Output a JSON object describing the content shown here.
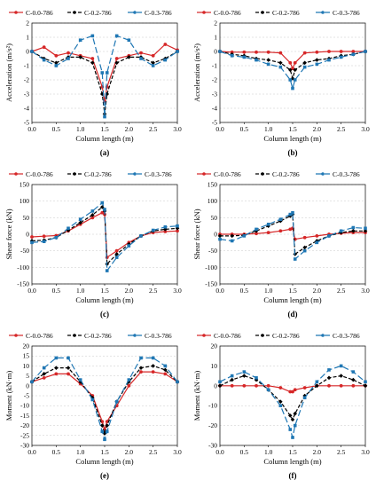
{
  "legend_labels": [
    "C-0.0-786",
    "C-0.2-786",
    "C-0.3-786"
  ],
  "series_colors": [
    "#d62728",
    "#000000",
    "#1f77b4"
  ],
  "chart_data": [
    {
      "type": "line",
      "panel_label": "(a)",
      "xlabel": "Column length (m)",
      "ylabel": "Acceleration (m/s²)",
      "xlim": [
        0,
        3
      ],
      "ylim": [
        -5,
        2
      ],
      "xticks": [
        0,
        0.5,
        1,
        1.5,
        2,
        2.5,
        3
      ],
      "yticks": [
        -5,
        -4,
        -3,
        -2,
        -1,
        0,
        1,
        2
      ],
      "grid": true,
      "legend": "top",
      "series": [
        {
          "name": "C-0.0-786",
          "x": [
            0,
            0.25,
            0.5,
            0.75,
            1.0,
            1.25,
            1.45,
            1.5,
            1.55,
            1.75,
            2.0,
            2.25,
            2.5,
            2.75,
            3.0
          ],
          "y": [
            0,
            0.3,
            -0.3,
            -0.1,
            -0.3,
            -0.5,
            -2.5,
            -3.5,
            -2.5,
            -0.5,
            -0.3,
            -0.1,
            -0.3,
            0.5,
            0.1
          ]
        },
        {
          "name": "C-0.2-786",
          "x": [
            0,
            0.25,
            0.5,
            0.75,
            1.0,
            1.25,
            1.45,
            1.5,
            1.55,
            1.75,
            2.0,
            2.25,
            2.5,
            2.75,
            3.0
          ],
          "y": [
            0,
            -0.5,
            -0.8,
            -0.4,
            -0.4,
            -0.8,
            -3.0,
            -4.4,
            -3.0,
            -0.8,
            -0.4,
            -0.4,
            -0.8,
            -0.5,
            0
          ]
        },
        {
          "name": "C-0.3-786",
          "x": [
            0,
            0.25,
            0.5,
            0.75,
            1.0,
            1.25,
            1.45,
            1.5,
            1.55,
            1.75,
            2.0,
            2.25,
            2.5,
            2.75,
            3.0
          ],
          "y": [
            0,
            -0.6,
            -1.0,
            -0.5,
            0.8,
            1.1,
            -1.5,
            -4.6,
            -1.5,
            1.1,
            0.8,
            -0.5,
            -1.0,
            -0.6,
            0
          ]
        }
      ]
    },
    {
      "type": "line",
      "panel_label": "(b)",
      "xlabel": "Column length (m)",
      "ylabel": "Acceleration (m/s²)",
      "xlim": [
        0,
        3
      ],
      "ylim": [
        -5,
        2
      ],
      "xticks": [
        0,
        0.5,
        1,
        1.5,
        2,
        2.5,
        3
      ],
      "yticks": [
        -5,
        -4,
        -3,
        -2,
        -1,
        0,
        1,
        2
      ],
      "grid": true,
      "legend": "top",
      "series": [
        {
          "name": "C-0.0-786",
          "x": [
            0,
            0.25,
            0.5,
            0.75,
            1.0,
            1.25,
            1.45,
            1.5,
            1.55,
            1.75,
            2.0,
            2.25,
            2.5,
            2.75,
            3.0
          ],
          "y": [
            0,
            -0.05,
            -0.05,
            -0.05,
            -0.05,
            -0.1,
            -0.8,
            -1.2,
            -0.8,
            -0.1,
            -0.05,
            0,
            0,
            0,
            0
          ]
        },
        {
          "name": "C-0.2-786",
          "x": [
            0,
            0.25,
            0.5,
            0.75,
            1.0,
            1.25,
            1.45,
            1.5,
            1.55,
            1.75,
            2.0,
            2.25,
            2.5,
            2.75,
            3.0
          ],
          "y": [
            0,
            -0.2,
            -0.3,
            -0.5,
            -0.6,
            -0.8,
            -1.3,
            -1.9,
            -1.3,
            -0.8,
            -0.6,
            -0.5,
            -0.3,
            -0.2,
            0
          ]
        },
        {
          "name": "C-0.3-786",
          "x": [
            0,
            0.25,
            0.5,
            0.75,
            1.0,
            1.25,
            1.45,
            1.5,
            1.55,
            1.75,
            2.0,
            2.25,
            2.5,
            2.75,
            3.0
          ],
          "y": [
            0,
            -0.3,
            -0.4,
            -0.6,
            -0.9,
            -1.1,
            -2.0,
            -2.6,
            -2.0,
            -1.1,
            -0.9,
            -0.6,
            -0.4,
            -0.2,
            0
          ]
        }
      ]
    },
    {
      "type": "line",
      "panel_label": "(c)",
      "xlabel": "Column length (m)",
      "ylabel": "Shear force (kN)",
      "xlim": [
        0,
        3
      ],
      "ylim": [
        -150,
        150
      ],
      "xticks": [
        0,
        0.5,
        1,
        1.5,
        2,
        2.5,
        3
      ],
      "yticks": [
        -150,
        -100,
        -50,
        0,
        50,
        100,
        150
      ],
      "grid": true,
      "legend": "top",
      "series": [
        {
          "name": "C-0.0-786",
          "x": [
            0,
            0.25,
            0.5,
            0.75,
            1.0,
            1.25,
            1.45,
            1.5,
            1.55,
            1.75,
            2.0,
            2.25,
            2.5,
            2.75,
            3.0
          ],
          "y": [
            -8,
            -6,
            -4,
            10,
            30,
            50,
            65,
            60,
            -70,
            -50,
            -25,
            -5,
            5,
            8,
            10
          ]
        },
        {
          "name": "C-0.2-786",
          "x": [
            0,
            0.25,
            0.5,
            0.75,
            1.0,
            1.25,
            1.45,
            1.5,
            1.55,
            1.75,
            2.0,
            2.25,
            2.5,
            2.75,
            3.0
          ],
          "y": [
            -20,
            -18,
            -10,
            12,
            35,
            58,
            82,
            70,
            -90,
            -60,
            -30,
            -5,
            10,
            15,
            18
          ]
        },
        {
          "name": "C-0.3-786",
          "x": [
            0,
            0.25,
            0.5,
            0.75,
            1.0,
            1.25,
            1.45,
            1.5,
            1.55,
            1.75,
            2.0,
            2.25,
            2.5,
            2.75,
            3.0
          ],
          "y": [
            -25,
            -22,
            -10,
            18,
            45,
            70,
            95,
            75,
            -110,
            -70,
            -35,
            -5,
            12,
            22,
            25
          ]
        }
      ]
    },
    {
      "type": "line",
      "panel_label": "(d)",
      "xlabel": "Column length (m)",
      "ylabel": "Shear force (kN)",
      "xlim": [
        0,
        3
      ],
      "ylim": [
        -150,
        150
      ],
      "xticks": [
        0,
        0.5,
        1,
        1.5,
        2,
        2.5,
        3
      ],
      "yticks": [
        -150,
        -100,
        -50,
        0,
        50,
        100,
        150
      ],
      "grid": true,
      "legend": "top",
      "series": [
        {
          "name": "C-0.0-786",
          "x": [
            0,
            0.25,
            0.5,
            0.75,
            1.0,
            1.25,
            1.45,
            1.5,
            1.55,
            1.75,
            2.0,
            2.25,
            2.5,
            2.75,
            3.0
          ],
          "y": [
            0,
            0,
            0,
            2,
            5,
            10,
            15,
            18,
            -15,
            -10,
            -5,
            0,
            3,
            5,
            5
          ]
        },
        {
          "name": "C-0.2-786",
          "x": [
            0,
            0.25,
            0.5,
            0.75,
            1.0,
            1.25,
            1.45,
            1.5,
            1.55,
            1.75,
            2.0,
            2.25,
            2.5,
            2.75,
            3.0
          ],
          "y": [
            -5,
            -5,
            -3,
            10,
            25,
            40,
            55,
            60,
            -60,
            -40,
            -20,
            -5,
            5,
            10,
            10
          ]
        },
        {
          "name": "C-0.3-786",
          "x": [
            0,
            0.25,
            0.5,
            0.75,
            1.0,
            1.25,
            1.45,
            1.5,
            1.55,
            1.75,
            2.0,
            2.25,
            2.5,
            2.75,
            3.0
          ],
          "y": [
            -15,
            -20,
            -5,
            15,
            30,
            45,
            60,
            65,
            -75,
            -50,
            -25,
            -5,
            10,
            20,
            18
          ]
        }
      ]
    },
    {
      "type": "line",
      "panel_label": "(e)",
      "xlabel": "Column length (m)",
      "ylabel": "Moment (kN·m)",
      "xlim": [
        0,
        3
      ],
      "ylim": [
        -30,
        20
      ],
      "xticks": [
        0,
        0.5,
        1,
        1.5,
        2,
        2.5,
        3
      ],
      "yticks": [
        -30,
        -25,
        -20,
        -15,
        -10,
        -5,
        0,
        5,
        10,
        15,
        20
      ],
      "grid": true,
      "legend": "top",
      "series": [
        {
          "name": "C-0.0-786",
          "x": [
            0,
            0.25,
            0.5,
            0.75,
            1.0,
            1.25,
            1.45,
            1.5,
            1.55,
            1.75,
            2.0,
            2.25,
            2.5,
            2.75,
            3.0
          ],
          "y": [
            2,
            4,
            6,
            6,
            1,
            -5,
            -18,
            -22,
            -18,
            -10,
            0,
            7,
            7,
            6,
            2
          ]
        },
        {
          "name": "C-0.2-786",
          "x": [
            0,
            0.25,
            0.5,
            0.75,
            1.0,
            1.25,
            1.45,
            1.5,
            1.55,
            1.75,
            2.0,
            2.25,
            2.5,
            2.75,
            3.0
          ],
          "y": [
            2,
            6,
            9,
            9,
            2,
            -6,
            -20,
            -24,
            -20,
            -8,
            2,
            9,
            10,
            8,
            2
          ]
        },
        {
          "name": "C-0.3-786",
          "x": [
            0,
            0.25,
            0.5,
            0.75,
            1.0,
            1.25,
            1.45,
            1.5,
            1.55,
            1.75,
            2.0,
            2.25,
            2.5,
            2.75,
            3.0
          ],
          "y": [
            2,
            9,
            14,
            14,
            3,
            -7,
            -23,
            -27,
            -23,
            -8,
            3,
            14,
            14,
            10,
            2
          ]
        }
      ]
    },
    {
      "type": "line",
      "panel_label": "(f)",
      "xlabel": "Column length (m)",
      "ylabel": "Moment (kN·m)",
      "xlim": [
        0,
        3
      ],
      "ylim": [
        -30,
        20
      ],
      "xticks": [
        0,
        0.5,
        1,
        1.5,
        2,
        2.5,
        3
      ],
      "yticks": [
        -30,
        -20,
        -10,
        0,
        10,
        20
      ],
      "grid": true,
      "legend": "top",
      "series": [
        {
          "name": "C-0.0-786",
          "x": [
            0,
            0.25,
            0.5,
            0.75,
            1.0,
            1.25,
            1.45,
            1.5,
            1.55,
            1.75,
            2.0,
            2.25,
            2.5,
            2.75,
            3.0
          ],
          "y": [
            0,
            0,
            0,
            0,
            0,
            -1,
            -3,
            -3,
            -2,
            -1,
            0,
            0,
            0,
            0,
            0
          ]
        },
        {
          "name": "C-0.2-786",
          "x": [
            0,
            0.25,
            0.5,
            0.75,
            1.0,
            1.25,
            1.45,
            1.5,
            1.55,
            1.75,
            2.0,
            2.25,
            2.5,
            2.75,
            3.0
          ],
          "y": [
            0,
            3,
            5,
            3,
            -2,
            -8,
            -15,
            -17,
            -14,
            -5,
            0,
            4,
            5,
            3,
            0
          ]
        },
        {
          "name": "C-0.3-786",
          "x": [
            0,
            0.25,
            0.5,
            0.75,
            1.0,
            1.25,
            1.45,
            1.5,
            1.55,
            1.75,
            2.0,
            2.25,
            2.5,
            2.75,
            3.0
          ],
          "y": [
            2,
            5,
            7,
            4,
            -2,
            -10,
            -22,
            -26,
            -20,
            -6,
            2,
            8,
            10,
            7,
            2
          ]
        }
      ]
    }
  ]
}
